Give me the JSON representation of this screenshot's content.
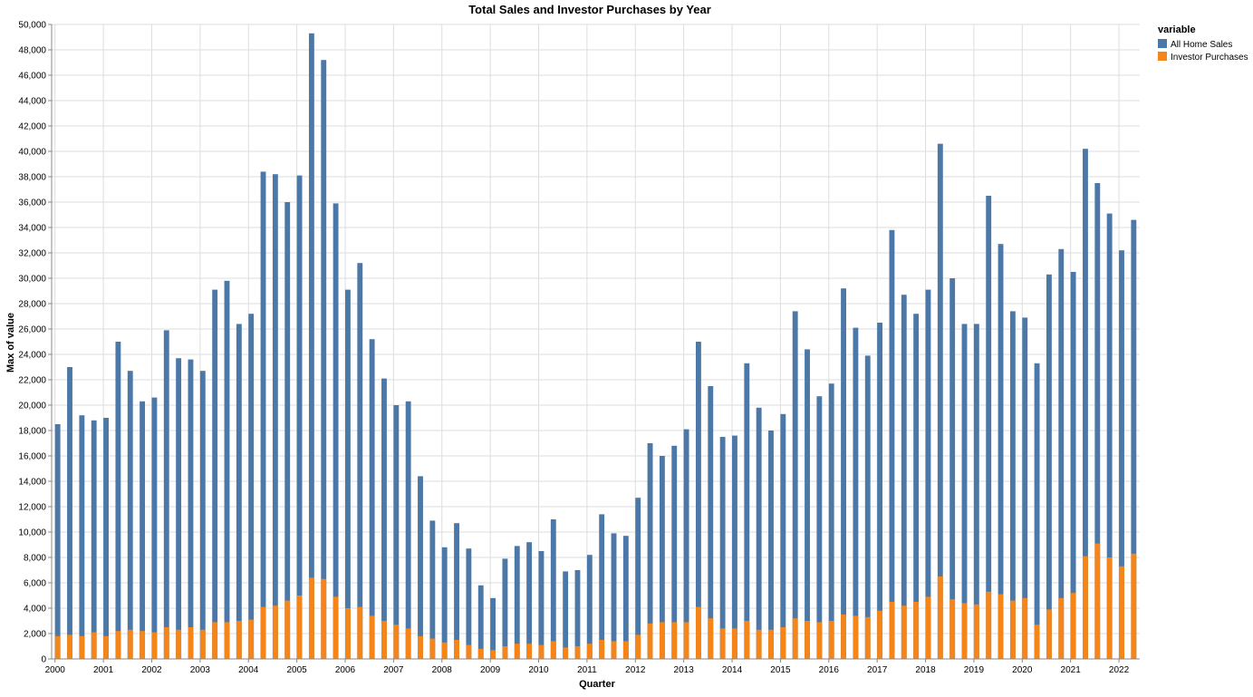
{
  "colors": {
    "all_home_sales": "#4c78a8",
    "investor_purchases": "#f58518",
    "grid": "#dddddd",
    "axis": "#888888"
  },
  "chart_data": {
    "type": "bar",
    "title": "Total Sales and Investor Purchases by Year",
    "xlabel": "Quarter",
    "ylabel": "Max of value",
    "ylim": [
      0,
      50000
    ],
    "y_ticks": [
      0,
      2000,
      4000,
      6000,
      8000,
      10000,
      12000,
      14000,
      16000,
      18000,
      20000,
      22000,
      24000,
      26000,
      28000,
      30000,
      32000,
      34000,
      36000,
      38000,
      40000,
      42000,
      44000,
      46000,
      48000,
      50000
    ],
    "y_tick_labels": [
      "0",
      "2,000",
      "4,000",
      "6,000",
      "8,000",
      "10,000",
      "12,000",
      "14,000",
      "16,000",
      "18,000",
      "20,000",
      "22,000",
      "24,000",
      "26,000",
      "28,000",
      "30,000",
      "32,000",
      "34,000",
      "36,000",
      "38,000",
      "40,000",
      "42,000",
      "44,000",
      "46,000",
      "48,000",
      "50,000"
    ],
    "x_tick_labels": [
      "2000",
      "2001",
      "2002",
      "2003",
      "2004",
      "2005",
      "2006",
      "2007",
      "2008",
      "2009",
      "2010",
      "2011",
      "2012",
      "2013",
      "2014",
      "2015",
      "2016",
      "2017",
      "2018",
      "2019",
      "2020",
      "2021",
      "2022"
    ],
    "grid": true,
    "stacked": "overlay",
    "legend": {
      "title": "variable",
      "placement": "top-right"
    },
    "categories": [
      "2000 Q1",
      "2000 Q2",
      "2000 Q3",
      "2000 Q4",
      "2001 Q1",
      "2001 Q2",
      "2001 Q3",
      "2001 Q4",
      "2002 Q1",
      "2002 Q2",
      "2002 Q3",
      "2002 Q4",
      "2003 Q1",
      "2003 Q2",
      "2003 Q3",
      "2003 Q4",
      "2004 Q1",
      "2004 Q2",
      "2004 Q3",
      "2004 Q4",
      "2005 Q1",
      "2005 Q2",
      "2005 Q3",
      "2005 Q4",
      "2006 Q1",
      "2006 Q2",
      "2006 Q3",
      "2006 Q4",
      "2007 Q1",
      "2007 Q2",
      "2007 Q3",
      "2007 Q4",
      "2008 Q1",
      "2008 Q2",
      "2008 Q3",
      "2008 Q4",
      "2009 Q1",
      "2009 Q2",
      "2009 Q3",
      "2009 Q4",
      "2010 Q1",
      "2010 Q2",
      "2010 Q3",
      "2010 Q4",
      "2011 Q1",
      "2011 Q2",
      "2011 Q3",
      "2011 Q4",
      "2012 Q1",
      "2012 Q2",
      "2012 Q3",
      "2012 Q4",
      "2013 Q1",
      "2013 Q2",
      "2013 Q3",
      "2013 Q4",
      "2014 Q1",
      "2014 Q2",
      "2014 Q3",
      "2014 Q4",
      "2015 Q1",
      "2015 Q2",
      "2015 Q3",
      "2015 Q4",
      "2016 Q1",
      "2016 Q2",
      "2016 Q3",
      "2016 Q4",
      "2017 Q1",
      "2017 Q2",
      "2017 Q3",
      "2017 Q4",
      "2018 Q1",
      "2018 Q2",
      "2018 Q3",
      "2018 Q4",
      "2019 Q1",
      "2019 Q2",
      "2019 Q3",
      "2019 Q4",
      "2020 Q1",
      "2020 Q2",
      "2020 Q3",
      "2020 Q4",
      "2021 Q1",
      "2021 Q2",
      "2021 Q3",
      "2021 Q4",
      "2022 Q1",
      "2022 Q2"
    ],
    "series": [
      {
        "name": "All Home Sales",
        "color": "#4c78a8",
        "values": [
          18500,
          23000,
          19200,
          18800,
          19000,
          25000,
          22700,
          20300,
          20600,
          25900,
          23700,
          23600,
          22700,
          29100,
          29800,
          26400,
          27200,
          38400,
          38200,
          36000,
          38100,
          49300,
          47200,
          35900,
          29100,
          31200,
          25200,
          22100,
          20000,
          20300,
          14400,
          10900,
          8800,
          10700,
          8700,
          5800,
          4800,
          7900,
          8900,
          9200,
          8500,
          11000,
          6900,
          7000,
          8200,
          11400,
          9900,
          9700,
          12700,
          17000,
          16000,
          16800,
          18100,
          25000,
          21500,
          17500,
          17600,
          23300,
          19800,
          18000,
          19300,
          27400,
          24400,
          20700,
          21700,
          29200,
          26100,
          23900,
          26500,
          33800,
          28700,
          27200,
          29100,
          40600,
          30000,
          26400,
          26400,
          36500,
          32700,
          27400,
          26900,
          23300,
          30300,
          32300,
          30500,
          40200,
          37500,
          35100,
          32200,
          34600
        ]
      },
      {
        "name": "Investor Purchases",
        "color": "#f58518",
        "values": [
          1800,
          1900,
          1800,
          2100,
          1800,
          2200,
          2300,
          2200,
          2100,
          2500,
          2300,
          2500,
          2300,
          2900,
          2900,
          3000,
          3100,
          4100,
          4200,
          4600,
          5000,
          6400,
          6300,
          4900,
          4000,
          4100,
          3400,
          3000,
          2700,
          2400,
          1800,
          1600,
          1300,
          1500,
          1100,
          800,
          700,
          1000,
          1200,
          1200,
          1100,
          1400,
          900,
          1000,
          1200,
          1500,
          1400,
          1400,
          1900,
          2800,
          2900,
          2900,
          2900,
          4100,
          3200,
          2400,
          2400,
          3000,
          2300,
          2300,
          2500,
          3200,
          3000,
          2900,
          3000,
          3500,
          3400,
          3300,
          3800,
          4500,
          4200,
          4500,
          4900,
          6500,
          4700,
          4400,
          4300,
          5300,
          5100,
          4600,
          4800,
          2700,
          3900,
          4800,
          5200,
          8100,
          9100,
          8000,
          7300,
          8300
        ]
      }
    ]
  }
}
